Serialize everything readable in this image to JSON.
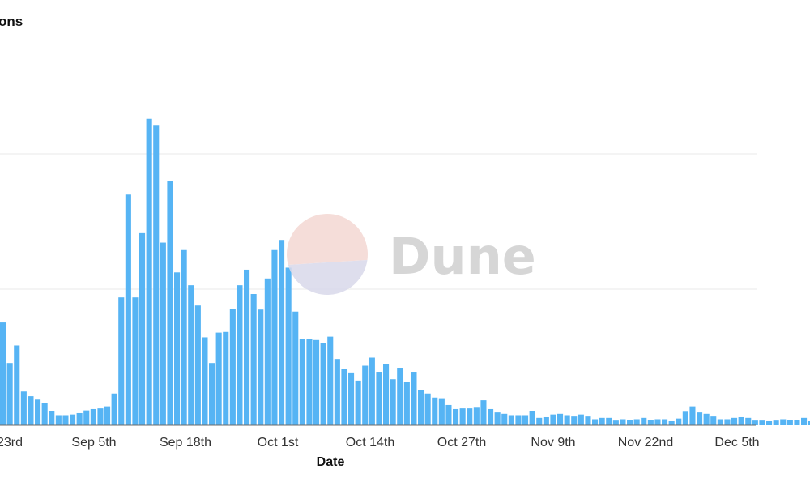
{
  "chart_data": {
    "type": "bar",
    "title": "ons",
    "xlabel": "Date",
    "ylabel": "",
    "grid": true,
    "colors": {
      "bar": "#56b4f4",
      "baseline": "#6b6b6b",
      "grid": "#e9e9e9"
    },
    "x_tick_labels": [
      "23rd",
      "Sep 5th",
      "Sep 18th",
      "Oct 1st",
      "Oct 14th",
      "Oct 27th",
      "Nov 9th",
      "Nov 22nd",
      "Dec 5th"
    ],
    "values": [
      152,
      92,
      118,
      50,
      43,
      38,
      33,
      21,
      15,
      15,
      16,
      18,
      22,
      24,
      25,
      28,
      47,
      189,
      341,
      189,
      284,
      453,
      444,
      270,
      361,
      226,
      259,
      207,
      177,
      130,
      92,
      137,
      138,
      172,
      207,
      230,
      194,
      171,
      217,
      259,
      274,
      233,
      168,
      128,
      127,
      126,
      121,
      131,
      98,
      83,
      78,
      66,
      88,
      100,
      79,
      90,
      68,
      85,
      64,
      79,
      52,
      47,
      41,
      40,
      30,
      24,
      25,
      25,
      26,
      37,
      24,
      19,
      17,
      15,
      15,
      15,
      21,
      11,
      12,
      16,
      17,
      15,
      13,
      16,
      13,
      9,
      11,
      11,
      7,
      9,
      8,
      9,
      11,
      8,
      9,
      9,
      6,
      10,
      20,
      28,
      19,
      17,
      13,
      9,
      9,
      11,
      12,
      11,
      7,
      7,
      6,
      7,
      9,
      8,
      8,
      11,
      6
    ]
  },
  "watermark": {
    "text": "Dune",
    "colors": {
      "top": "#f4d8d3",
      "bottom": "#d9d9eb"
    }
  }
}
